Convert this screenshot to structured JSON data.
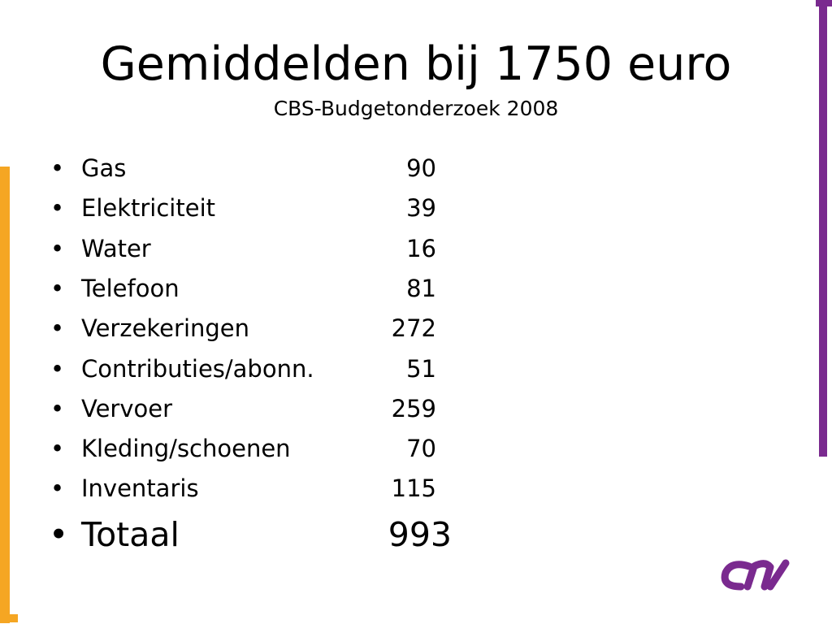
{
  "title": "Gemiddelden bij 1750 euro",
  "subtitle": "CBS-Budgetonderzoek 2008",
  "items": [
    {
      "label": "Gas",
      "value": 90
    },
    {
      "label": "Elektriciteit",
      "value": 39
    },
    {
      "label": "Water",
      "value": 16
    },
    {
      "label": "Telefoon",
      "value": 81
    },
    {
      "label": "Verzekeringen",
      "value": 272
    },
    {
      "label": "Contributies/abonn.",
      "value": 51
    },
    {
      "label": "Vervoer",
      "value": 259
    },
    {
      "label": "Kleding/schoenen",
      "value": 70
    },
    {
      "label": "Inventaris",
      "value": 115
    }
  ],
  "total": {
    "label": "Totaal",
    "value": 993
  }
}
